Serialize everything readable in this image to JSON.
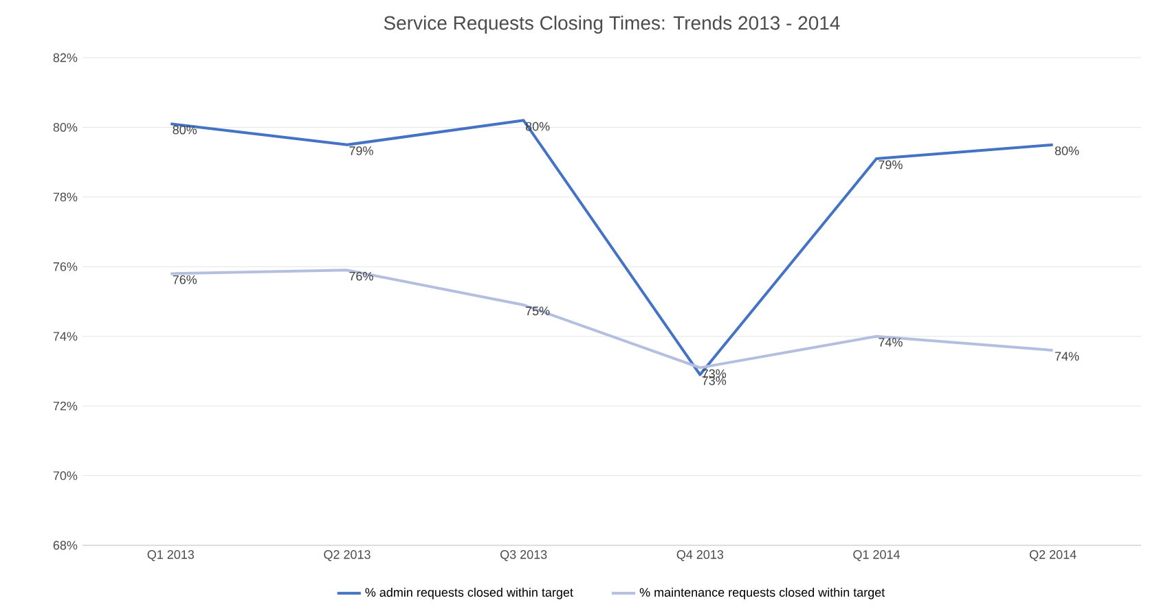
{
  "chart_data": {
    "type": "line",
    "title": "Service Requests Closing Times: Trends 2013 - 2014",
    "categories": [
      "Q1 2013",
      "Q2 2013",
      "Q3 2013",
      "Q4 2013",
      "Q1 2014",
      "Q2 2014"
    ],
    "series": [
      {
        "name": "% admin requests closed within target",
        "color": "#4472c4",
        "values": [
          80.1,
          79.5,
          80.2,
          72.9,
          79.1,
          79.5
        ],
        "value_labels": [
          "80%",
          "79%",
          "80%",
          "73%",
          "79%",
          "80%"
        ]
      },
      {
        "name": "% maintenance requests closed within target",
        "color": "#b4bfe0",
        "values": [
          75.8,
          75.9,
          74.9,
          73.1,
          74.0,
          73.6
        ],
        "value_labels": [
          "76%",
          "76%",
          "75%",
          "73%",
          "74%",
          "74%"
        ]
      }
    ],
    "ylim": [
      68,
      82
    ],
    "yticks": [
      {
        "value": 68,
        "label": "68%"
      },
      {
        "value": 70,
        "label": "70%"
      },
      {
        "value": 72,
        "label": "72%"
      },
      {
        "value": 74,
        "label": "74%"
      },
      {
        "value": 76,
        "label": "76%"
      },
      {
        "value": 78,
        "label": "78%"
      },
      {
        "value": 80,
        "label": "80%"
      },
      {
        "value": 82,
        "label": "82%"
      }
    ],
    "grid": "y",
    "legend": "bottom",
    "marker": "none",
    "line_style": "solid"
  }
}
